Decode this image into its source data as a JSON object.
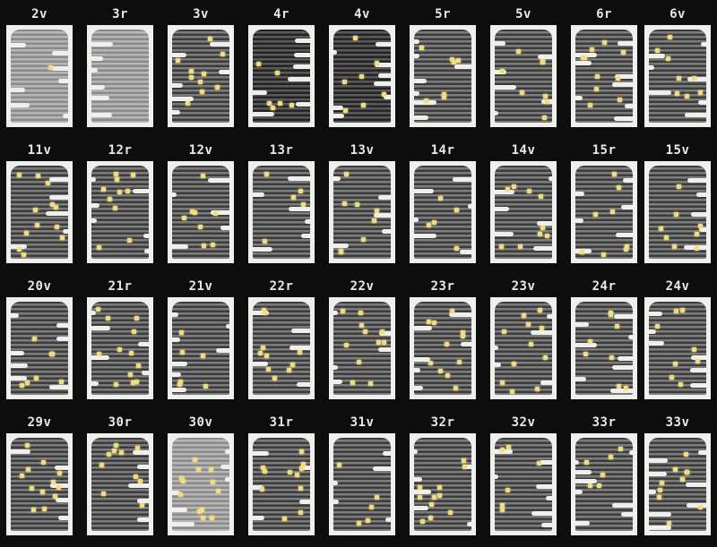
{
  "colors": {
    "background": "#0d0d0d",
    "label": "#e8e8e8",
    "page": "#efefec",
    "highlight": "#f1de7a"
  },
  "rows": [
    [
      "2v",
      "3r",
      "3v",
      "4r",
      "4v",
      "5r",
      "5v",
      "6r",
      "6v"
    ],
    [
      "11v",
      "12r",
      "12v",
      "13r",
      "13v",
      "14r",
      "14v",
      "15r",
      "15v"
    ],
    [
      "20v",
      "21r",
      "21v",
      "22r",
      "22v",
      "23r",
      "23v",
      "24r",
      "24v"
    ],
    [
      "29v",
      "30r",
      "30v",
      "31r",
      "31v",
      "32r",
      "32v",
      "33r",
      "33v"
    ]
  ]
}
